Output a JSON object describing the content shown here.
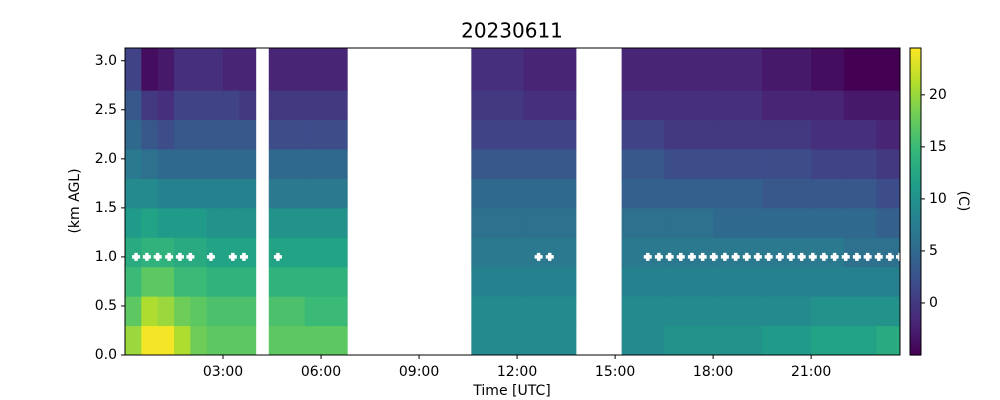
{
  "chart_data": {
    "type": "heatmap",
    "title": "20230611",
    "xlabel": "Time [UTC]",
    "ylabel": "(km AGL)",
    "colorbar_label": "(C)",
    "colormap": "viridis",
    "clim": [
      -5,
      24.5
    ],
    "cticks": [
      0,
      5,
      10,
      15,
      20
    ],
    "xlim": [
      0,
      23.72
    ],
    "ylim": [
      0,
      3.13
    ],
    "xticks": [
      {
        "value": 3,
        "label": "03:00"
      },
      {
        "value": 6,
        "label": "06:00"
      },
      {
        "value": 9,
        "label": "09:00"
      },
      {
        "value": 12,
        "label": "12:00"
      },
      {
        "value": 15,
        "label": "15:00"
      },
      {
        "value": 18,
        "label": "18:00"
      },
      {
        "value": 21,
        "label": "21:00"
      }
    ],
    "yticks": [
      {
        "value": 0,
        "label": "0.0"
      },
      0.5,
      {
        "value": 1,
        "label": "1.0"
      },
      1.5,
      {
        "value": 2,
        "label": "2.0"
      },
      2.5,
      {
        "value": 3,
        "label": "3.0"
      }
    ],
    "x_edges": [
      0,
      0.5,
      1,
      1.5,
      2,
      2.5,
      3,
      3.5,
      4.0,
      4.4,
      5.5,
      6.8,
      10.6,
      12.2,
      13.8,
      15.2,
      16.5,
      18,
      19.5,
      21,
      22,
      23,
      23.72
    ],
    "y_edges": [
      0,
      0.3,
      0.6,
      0.9,
      1.2,
      1.5,
      1.8,
      2.1,
      2.4,
      2.7,
      3.13
    ],
    "z": [
      [
        20,
        17,
        15,
        13,
        11,
        9,
        7,
        5,
        3,
        1
      ],
      [
        24,
        21,
        17,
        14,
        12,
        9,
        6,
        3,
        0,
        -4
      ],
      [
        24,
        20,
        17,
        14,
        11,
        8,
        5,
        2,
        -1,
        -3
      ],
      [
        21,
        18,
        15,
        13,
        11,
        8,
        5,
        3,
        1,
        -1
      ],
      [
        18,
        17,
        15,
        13,
        11,
        8,
        5,
        3,
        1,
        -1
      ],
      [
        17,
        16,
        14,
        12,
        10,
        8,
        5,
        3,
        1,
        -1
      ],
      [
        17,
        16,
        14,
        12,
        10,
        8,
        5,
        3,
        1,
        -2
      ],
      [
        17,
        16,
        14,
        12,
        10,
        8,
        5,
        3,
        0,
        -2
      ],
      null,
      [
        17,
        16,
        14,
        12,
        10,
        7,
        5,
        2,
        0,
        -2
      ],
      [
        17,
        15,
        14,
        12,
        10,
        7,
        5,
        2,
        0,
        -2
      ],
      null,
      [
        9,
        9,
        8,
        7,
        6,
        5,
        3,
        1,
        0,
        -1
      ],
      [
        9,
        9,
        8,
        7,
        6,
        5,
        3,
        1,
        -1,
        -2
      ],
      null,
      [
        9,
        9,
        8,
        7,
        6,
        4,
        3,
        1,
        -1,
        -2
      ],
      [
        10,
        9,
        8,
        7,
        6,
        4,
        2,
        0,
        -1,
        -2
      ],
      [
        10,
        9,
        8,
        7,
        5,
        4,
        2,
        0,
        -1,
        -2
      ],
      [
        11,
        9,
        8,
        7,
        5,
        3,
        2,
        0,
        -2,
        -3
      ],
      [
        12,
        10,
        8,
        7,
        5,
        3,
        1,
        -1,
        -2,
        -4
      ],
      [
        12,
        10,
        8,
        6,
        5,
        3,
        1,
        -1,
        -3,
        -5
      ],
      [
        13,
        10,
        8,
        6,
        4,
        2,
        0,
        -2,
        -3,
        -5
      ]
    ],
    "markers": {
      "color": "#ffffff",
      "x": [
        0.34,
        0.67,
        1.0,
        1.35,
        1.68,
        2.0,
        2.63,
        3.3,
        3.64,
        4.68,
        12.66,
        13.0,
        16.0,
        16.34,
        16.67,
        17.01,
        17.35,
        17.68,
        18.02,
        18.36,
        18.69,
        19.03,
        19.37,
        19.7,
        20.04,
        20.38,
        20.71,
        21.05,
        21.39,
        21.72,
        22.06,
        22.4,
        22.73,
        23.07,
        23.41,
        23.72
      ],
      "y": [
        1,
        1,
        1,
        1,
        1,
        1,
        1,
        1,
        1,
        1,
        1,
        1,
        1,
        1,
        1,
        1,
        1,
        1,
        1,
        1,
        1,
        1,
        1,
        1,
        1,
        1,
        1,
        1,
        1,
        1,
        1,
        1,
        1,
        1,
        1,
        1
      ]
    }
  }
}
